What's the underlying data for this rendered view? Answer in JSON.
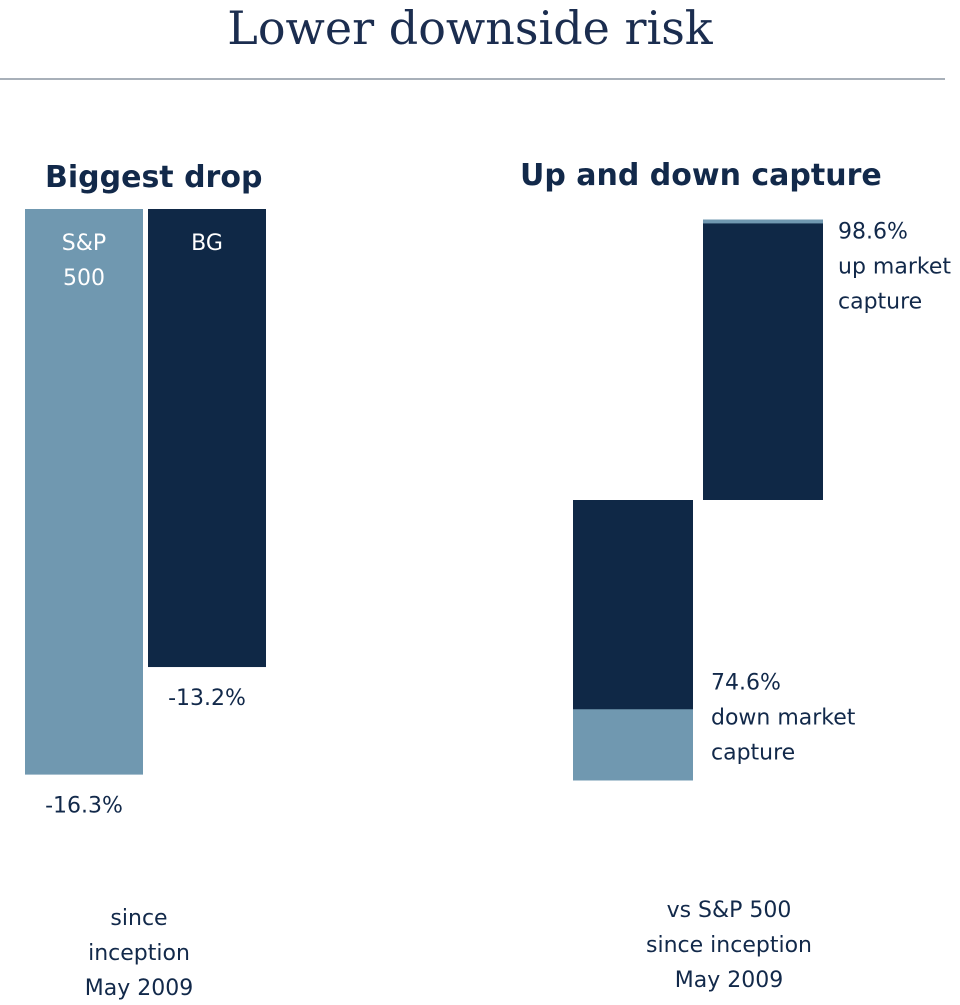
{
  "title": "Lower downside risk",
  "chart_data": [
    {
      "type": "bar",
      "title": "Biggest drop",
      "categories": [
        "S&P 500",
        "BG"
      ],
      "category_label_lines": [
        [
          "S&P",
          "500"
        ],
        [
          "BG"
        ]
      ],
      "values": [
        -16.3,
        -13.2
      ],
      "value_labels": [
        "-16.3%",
        "-13.2%"
      ],
      "colors": [
        "#7098b0",
        "#0f2846"
      ],
      "note_lines": [
        "since",
        "inception",
        "May 2009"
      ]
    },
    {
      "type": "bar",
      "title": "Up and down capture",
      "categories": [
        "down market capture",
        "up market capture"
      ],
      "values": [
        74.6,
        98.6
      ],
      "benchmark": 100,
      "label_lines": [
        [
          "74.6%",
          "down market",
          "capture"
        ],
        [
          "98.6%",
          "up market",
          "capture"
        ]
      ],
      "colors": {
        "fund": "#0f2846",
        "benchmark": "#7098b0"
      },
      "note_lines": [
        "vs S&P 500",
        "since inception",
        "May 2009"
      ]
    }
  ]
}
